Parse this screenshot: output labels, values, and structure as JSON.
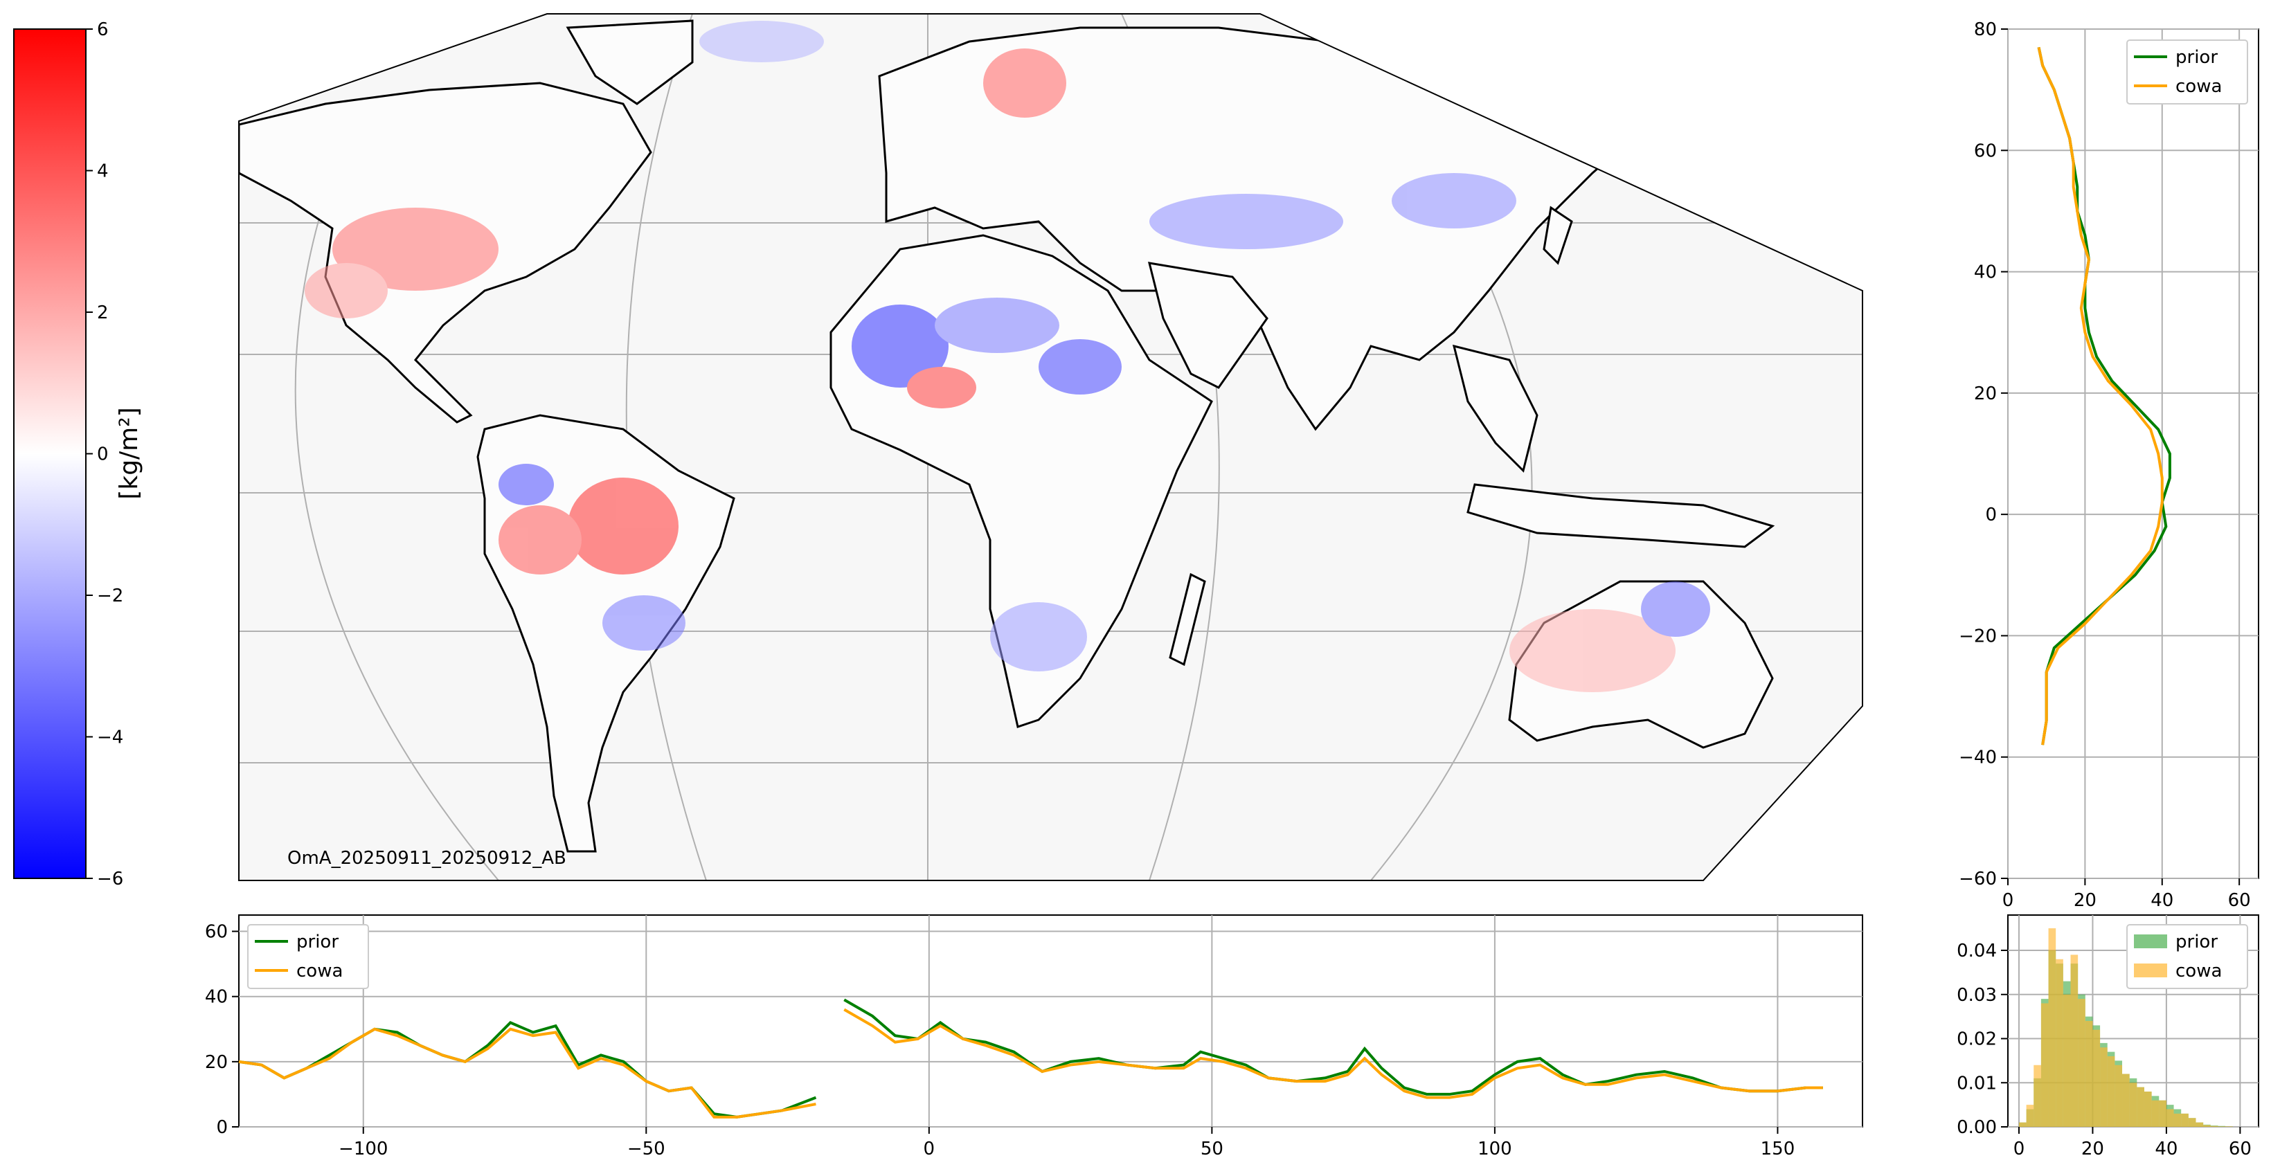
{
  "annotation": "OmA_20250911_20250912_AB",
  "colorbar": {
    "label": "[kg/m²]",
    "ticks": [
      6,
      4,
      2,
      0,
      -2,
      -4,
      -6
    ],
    "tick_labels": [
      "6",
      "4",
      "2",
      "0",
      "−2",
      "−4",
      "−6"
    ],
    "range": [
      -6,
      6
    ],
    "colors": {
      "low": "#0000ff",
      "mid": "#ffffff",
      "high": "#ff0000"
    }
  },
  "colors": {
    "prior": "#008000",
    "cowa": "#ffa500",
    "raw": "#7fb2d6",
    "grid": "#b0b0b0",
    "ocean": "#f7f7f7"
  },
  "chart_data": [
    {
      "type": "line",
      "panel": "latitude-profile",
      "orientation": "horizontal",
      "xlim": [
        0,
        65
      ],
      "ylim": [
        -60,
        80
      ],
      "xticks": [
        0,
        20,
        40,
        60
      ],
      "yticks": [
        -60,
        -40,
        -20,
        0,
        20,
        40,
        60,
        80
      ],
      "grid": true,
      "legend": "top-right",
      "series": [
        {
          "name": "prior",
          "lat": [
            77,
            74,
            70,
            66,
            62,
            58,
            54,
            50,
            46,
            42,
            38,
            34,
            30,
            26,
            22,
            18,
            14,
            10,
            6,
            2,
            -2,
            -6,
            -10,
            -14,
            -18,
            -22,
            -26,
            -30,
            -34,
            -38
          ],
          "value": [
            8,
            9,
            12,
            14,
            16,
            17,
            18,
            18,
            20,
            21,
            20,
            20,
            21,
            23,
            27,
            33,
            39,
            42,
            42,
            40,
            41,
            38,
            33,
            26,
            19,
            12,
            10,
            10,
            10,
            9
          ]
        },
        {
          "name": "cowa",
          "lat": [
            77,
            74,
            70,
            66,
            62,
            58,
            54,
            50,
            46,
            42,
            38,
            34,
            30,
            26,
            22,
            18,
            14,
            10,
            6,
            2,
            -2,
            -6,
            -10,
            -14,
            -18,
            -22,
            -26,
            -30,
            -34,
            -38
          ],
          "value": [
            8,
            9,
            12,
            14,
            16,
            17,
            17,
            18,
            19,
            21,
            20,
            19,
            20,
            22,
            26,
            32,
            37,
            39,
            40,
            40,
            39,
            37,
            32,
            26,
            20,
            13,
            10,
            10,
            10,
            9
          ]
        }
      ]
    },
    {
      "type": "line",
      "panel": "longitude-profile",
      "xlim": [
        -122,
        165
      ],
      "ylim": [
        0,
        65
      ],
      "xticks": [
        -100,
        -50,
        0,
        50,
        100,
        150
      ],
      "yticks": [
        0,
        20,
        40,
        60
      ],
      "grid": true,
      "legend": "top-left",
      "series": [
        {
          "name": "prior",
          "segments": [
            {
              "x": [
                -122,
                -118,
                -114,
                -110,
                -106,
                -102,
                -98,
                -94,
                -90,
                -86,
                -82,
                -78,
                -74,
                -70,
                -66,
                -62,
                -58,
                -54,
                -50,
                -46,
                -42,
                -38,
                -34,
                -30,
                -26,
                -20
              ],
              "y": [
                20,
                19,
                15,
                18,
                22,
                26,
                30,
                29,
                25,
                22,
                20,
                25,
                32,
                29,
                31,
                19,
                22,
                20,
                14,
                11,
                12,
                4,
                3,
                4,
                5,
                9
              ]
            },
            {
              "x": [
                -15,
                -10,
                -6,
                -2,
                2,
                6,
                10,
                15,
                20,
                25,
                30,
                35,
                40,
                45,
                48,
                52,
                56,
                60,
                65,
                70,
                74,
                77,
                80,
                84,
                88,
                92,
                96,
                100,
                104,
                108,
                112,
                116,
                120,
                125,
                130,
                135,
                140,
                145,
                150,
                155,
                158
              ],
              "y": [
                39,
                34,
                28,
                27,
                32,
                27,
                26,
                23,
                17,
                20,
                21,
                19,
                18,
                19,
                23,
                21,
                19,
                15,
                14,
                15,
                17,
                24,
                18,
                12,
                10,
                10,
                11,
                16,
                20,
                21,
                16,
                13,
                14,
                16,
                17,
                15,
                12,
                11,
                11,
                12,
                12
              ]
            }
          ]
        },
        {
          "name": "cowa",
          "segments": [
            {
              "x": [
                -122,
                -118,
                -114,
                -110,
                -106,
                -102,
                -98,
                -94,
                -90,
                -86,
                -82,
                -78,
                -74,
                -70,
                -66,
                -62,
                -58,
                -54,
                -50,
                -46,
                -42,
                -38,
                -34,
                -30,
                -26,
                -20
              ],
              "y": [
                20,
                19,
                15,
                18,
                21,
                26,
                30,
                28,
                25,
                22,
                20,
                24,
                30,
                28,
                29,
                18,
                21,
                19,
                14,
                11,
                12,
                3,
                3,
                4,
                5,
                7
              ]
            },
            {
              "x": [
                -15,
                -10,
                -6,
                -2,
                2,
                6,
                10,
                15,
                20,
                25,
                30,
                35,
                40,
                45,
                48,
                52,
                56,
                60,
                65,
                70,
                74,
                77,
                80,
                84,
                88,
                92,
                96,
                100,
                104,
                108,
                112,
                116,
                120,
                125,
                130,
                135,
                140,
                145,
                150,
                155,
                158
              ],
              "y": [
                36,
                31,
                26,
                27,
                31,
                27,
                25,
                22,
                17,
                19,
                20,
                19,
                18,
                18,
                21,
                20,
                18,
                15,
                14,
                14,
                16,
                21,
                16,
                11,
                9,
                9,
                10,
                15,
                18,
                19,
                15,
                13,
                13,
                15,
                16,
                14,
                12,
                11,
                11,
                12,
                12
              ]
            }
          ]
        }
      ]
    },
    {
      "type": "bar",
      "panel": "histogram",
      "xlim": [
        -3,
        65
      ],
      "ylim": [
        0,
        0.048
      ],
      "xticks": [
        0,
        20,
        40,
        60
      ],
      "yticks": [
        0.0,
        0.01,
        0.02,
        0.03,
        0.04
      ],
      "ytick_labels": [
        "0.00",
        "0.01",
        "0.02",
        "0.03",
        "0.04"
      ],
      "bin_width": 2,
      "bin_start": 0,
      "grid": true,
      "legend": "top-right",
      "series": [
        {
          "name": "prior",
          "color": "#4caf50",
          "values": [
            0.001,
            0.004,
            0.011,
            0.029,
            0.04,
            0.037,
            0.033,
            0.037,
            0.03,
            0.025,
            0.023,
            0.019,
            0.017,
            0.015,
            0.012,
            0.011,
            0.009,
            0.008,
            0.007,
            0.006,
            0.005,
            0.004,
            0.003,
            0.002,
            0.001,
            0.0005,
            0.0003,
            0.0002,
            0.0001
          ]
        },
        {
          "name": "cowa",
          "color": "#ffb732",
          "values": [
            0.001,
            0.005,
            0.014,
            0.028,
            0.045,
            0.038,
            0.03,
            0.039,
            0.029,
            0.024,
            0.022,
            0.018,
            0.016,
            0.014,
            0.012,
            0.01,
            0.009,
            0.008,
            0.006,
            0.006,
            0.004,
            0.003,
            0.003,
            0.002,
            0.001,
            0.0004,
            0.0002,
            0.0001,
            0.0001
          ]
        }
      ]
    }
  ]
}
